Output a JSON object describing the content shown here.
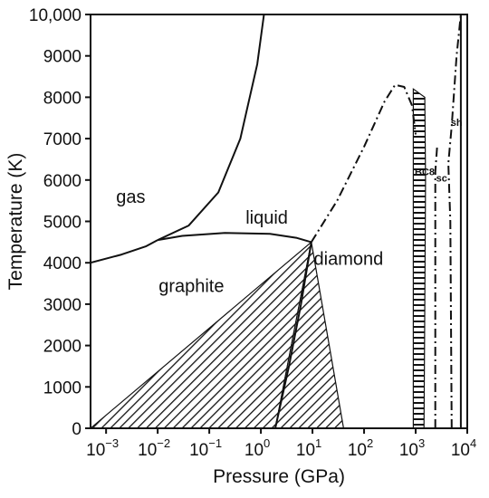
{
  "chart_data": {
    "type": "phase-diagram",
    "title": "",
    "xlabel": "Pressure (GPa)",
    "ylabel": "Temperature (K)",
    "x_scale": "log",
    "xlim": [
      0.0005,
      10000
    ],
    "ylim": [
      0,
      10000
    ],
    "x_ticks": [
      {
        "base": "10",
        "exp": "−3",
        "value": 0.001
      },
      {
        "base": "10",
        "exp": "−2",
        "value": 0.01
      },
      {
        "base": "10",
        "exp": "−1",
        "value": 0.1
      },
      {
        "base": "10",
        "exp": "0",
        "value": 1
      },
      {
        "base": "10",
        "exp": "1",
        "value": 10
      },
      {
        "base": "10",
        "exp": "2",
        "value": 100
      },
      {
        "base": "10",
        "exp": "3",
        "value": 1000
      },
      {
        "base": "10",
        "exp": "4",
        "value": 10000
      }
    ],
    "y_ticks": [
      {
        "label": "0",
        "value": 0
      },
      {
        "label": "1000",
        "value": 1000
      },
      {
        "label": "2000",
        "value": 2000
      },
      {
        "label": "3000",
        "value": 3000
      },
      {
        "label": "4000",
        "value": 4000
      },
      {
        "label": "5000",
        "value": 5000
      },
      {
        "label": "6000",
        "value": 6000
      },
      {
        "label": "7000",
        "value": 7000
      },
      {
        "label": "8000",
        "value": 8000
      },
      {
        "label": "9000",
        "value": 9000
      },
      {
        "label": "10,000",
        "value": 10000
      }
    ],
    "regions": [
      {
        "label": "gas",
        "x": 0.003,
        "y": 5600
      },
      {
        "label": "liquid",
        "x": 1.3,
        "y": 5100
      },
      {
        "label": "graphite",
        "x": 0.045,
        "y": 3450
      },
      {
        "label": "diamond",
        "x": 50,
        "y": 4100
      },
      {
        "label": "BC8",
        "x": 1500,
        "y": 6200
      },
      {
        "label": "sc",
        "x": 3200,
        "y": 6050
      },
      {
        "label": "sh",
        "x": 6200,
        "y": 7400
      }
    ],
    "boundaries": [
      {
        "name": "gas-liquid",
        "style": "solid",
        "points": [
          [
            0.01,
            4550
          ],
          [
            0.04,
            4900
          ],
          [
            0.15,
            5700
          ],
          [
            0.4,
            7000
          ],
          [
            0.85,
            8800
          ],
          [
            1.15,
            10000
          ]
        ]
      },
      {
        "name": "gas-graphite",
        "style": "solid",
        "points": [
          [
            0.0005,
            4000
          ],
          [
            0.002,
            4200
          ],
          [
            0.006,
            4400
          ],
          [
            0.01,
            4550
          ]
        ]
      },
      {
        "name": "graphite-liquid",
        "style": "solid",
        "points": [
          [
            0.01,
            4550
          ],
          [
            0.03,
            4650
          ],
          [
            0.2,
            4720
          ],
          [
            1.5,
            4700
          ],
          [
            5,
            4600
          ],
          [
            9.5,
            4500
          ]
        ]
      },
      {
        "name": "graphite-diamond",
        "style": "solid",
        "points": [
          [
            1.9,
            0
          ],
          [
            3.5,
            1500
          ],
          [
            6,
            3000
          ],
          [
            9.5,
            4500
          ]
        ]
      },
      {
        "name": "diamond-melting",
        "style": "dashdot",
        "points": [
          [
            9.5,
            4500
          ],
          [
            30,
            5500
          ],
          [
            100,
            6800
          ],
          [
            250,
            7900
          ],
          [
            400,
            8300
          ],
          [
            600,
            8250
          ],
          [
            850,
            7800
          ],
          [
            1000,
            7100
          ]
        ]
      },
      {
        "name": "BC8-sc",
        "style": "dashdot",
        "points": [
          [
            2400,
            0
          ],
          [
            2400,
            6200
          ],
          [
            2600,
            6800
          ]
        ]
      },
      {
        "name": "sc-sh",
        "style": "dashdot",
        "points": [
          [
            5000,
            0
          ],
          [
            4700,
            5000
          ],
          [
            4300,
            6400
          ],
          [
            5000,
            7300
          ],
          [
            6200,
            9000
          ],
          [
            7500,
            10000
          ]
        ]
      },
      {
        "name": "sh-right",
        "style": "solid",
        "points": [
          [
            7500,
            0
          ],
          [
            7500,
            10000
          ]
        ]
      }
    ],
    "hatched_regions": [
      {
        "name": "graphite-metastable",
        "pattern": "diagonal",
        "points": [
          [
            0.0005,
            0
          ],
          [
            9.5,
            4500
          ],
          [
            1.9,
            0
          ]
        ]
      },
      {
        "name": "diamond-metastable",
        "pattern": "diagonal",
        "points": [
          [
            1.9,
            0
          ],
          [
            9.5,
            4500
          ],
          [
            40,
            0
          ]
        ]
      },
      {
        "name": "BC8-metastable",
        "pattern": "horizontal",
        "points": [
          [
            900,
            0
          ],
          [
            900,
            8200
          ],
          [
            1500,
            8000
          ],
          [
            1550,
            6000
          ],
          [
            1500,
            3000
          ],
          [
            1450,
            0
          ]
        ]
      }
    ],
    "grid": false,
    "legend": "none"
  }
}
